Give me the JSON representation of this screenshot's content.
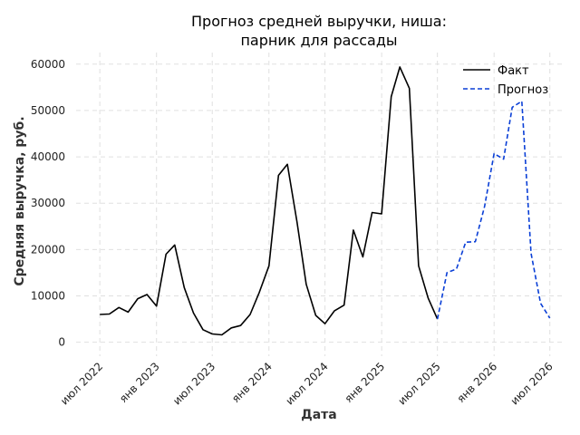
{
  "chart_data": {
    "type": "line",
    "title": [
      "Прогноз средней выручки, ниша:",
      "парник для рассады"
    ],
    "xlabel": "Дата",
    "ylabel": "Средняя выручка, руб.",
    "ylim": [
      -3000,
      62500
    ],
    "yticks": [
      0,
      10000,
      20000,
      30000,
      40000,
      50000,
      60000
    ],
    "xticks": [
      {
        "date": "2022-07-01",
        "label": "июл 2022"
      },
      {
        "date": "2023-01-01",
        "label": "янв 2023"
      },
      {
        "date": "2023-07-01",
        "label": "июл 2023"
      },
      {
        "date": "2024-01-01",
        "label": "янв 2024"
      },
      {
        "date": "2024-07-01",
        "label": "июл 2024"
      },
      {
        "date": "2025-01-01",
        "label": "янв 2025"
      },
      {
        "date": "2025-07-01",
        "label": "июл 2025"
      },
      {
        "date": "2026-01-01",
        "label": "янв 2026"
      },
      {
        "date": "2026-07-01",
        "label": "июл 2026"
      }
    ],
    "xlim": [
      "2022-04-15",
      "2026-08-15"
    ],
    "grid": true,
    "legend_position": "top-right",
    "series": [
      {
        "name": "Факт",
        "color": "#000000",
        "style": "solid",
        "points": [
          [
            "2022-07-01",
            6000
          ],
          [
            "2022-08-01",
            6100
          ],
          [
            "2022-09-01",
            7500
          ],
          [
            "2022-10-01",
            6500
          ],
          [
            "2022-11-01",
            9400
          ],
          [
            "2022-12-01",
            10300
          ],
          [
            "2023-01-01",
            7800
          ],
          [
            "2023-02-01",
            19000
          ],
          [
            "2023-03-01",
            21000
          ],
          [
            "2023-04-01",
            11800
          ],
          [
            "2023-05-01",
            6300
          ],
          [
            "2023-06-01",
            2700
          ],
          [
            "2023-07-01",
            1800
          ],
          [
            "2023-08-01",
            1600
          ],
          [
            "2023-09-01",
            3100
          ],
          [
            "2023-10-01",
            3600
          ],
          [
            "2023-11-01",
            6000
          ],
          [
            "2023-12-01",
            10800
          ],
          [
            "2024-01-01",
            16500
          ],
          [
            "2024-02-01",
            36000
          ],
          [
            "2024-03-01",
            38400
          ],
          [
            "2024-04-01",
            26000
          ],
          [
            "2024-05-01",
            12500
          ],
          [
            "2024-06-01",
            5800
          ],
          [
            "2024-07-01",
            4000
          ],
          [
            "2024-08-01",
            6800
          ],
          [
            "2024-09-01",
            8000
          ],
          [
            "2024-10-01",
            24200
          ],
          [
            "2024-11-01",
            18400
          ],
          [
            "2024-12-01",
            28000
          ],
          [
            "2025-01-01",
            27700
          ],
          [
            "2025-02-01",
            53000
          ],
          [
            "2025-03-01",
            59400
          ],
          [
            "2025-04-01",
            54800
          ],
          [
            "2025-05-01",
            16500
          ],
          [
            "2025-06-01",
            9500
          ],
          [
            "2025-07-01",
            5000
          ]
        ]
      },
      {
        "name": "Прогноз",
        "color": "#0a3fd6",
        "style": "dashed",
        "points": [
          [
            "2025-07-01",
            5000
          ],
          [
            "2025-08-01",
            15000
          ],
          [
            "2025-09-01",
            15800
          ],
          [
            "2025-10-01",
            21600
          ],
          [
            "2025-11-01",
            21700
          ],
          [
            "2025-12-01",
            29300
          ],
          [
            "2026-01-01",
            40700
          ],
          [
            "2026-02-01",
            39500
          ],
          [
            "2026-03-01",
            50700
          ],
          [
            "2026-04-01",
            52000
          ],
          [
            "2026-05-01",
            19200
          ],
          [
            "2026-06-01",
            8400
          ],
          [
            "2026-07-01",
            5200
          ]
        ]
      }
    ]
  }
}
